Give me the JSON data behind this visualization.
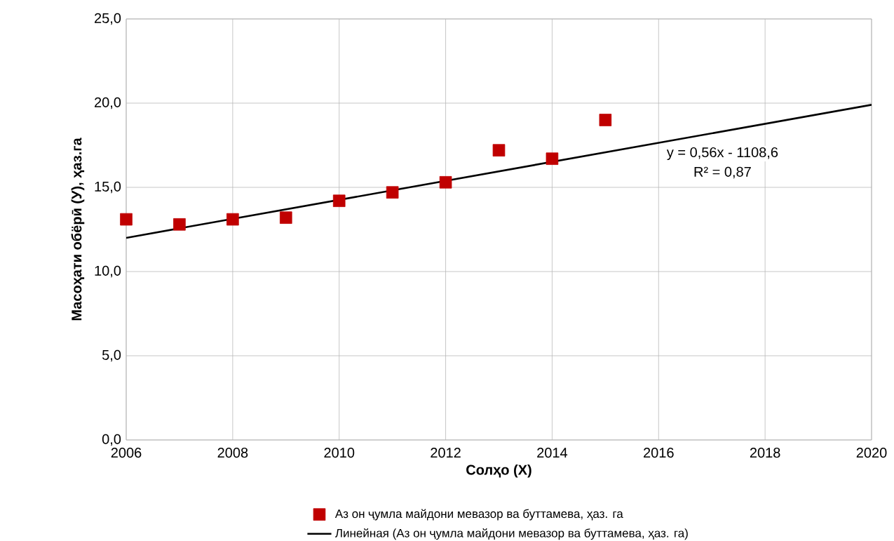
{
  "chart_data": {
    "type": "scatter",
    "xlabel": "Солҳо (X)",
    "ylabel": "Масоҳати обёрӣ (У), ҳаз.га",
    "x": [
      2006,
      2007,
      2008,
      2009,
      2010,
      2011,
      2012,
      2013,
      2014,
      2015
    ],
    "series": [
      {
        "name": "Аз он ҷумла майдони мевазор ва буттамева, ҳаз. га",
        "color": "#c00000",
        "marker": "square",
        "values": [
          13.1,
          12.8,
          13.1,
          13.2,
          14.2,
          14.7,
          15.3,
          17.2,
          16.7,
          19.0
        ]
      },
      {
        "name": "Линейная (Аз он ҷумла майдони мевазор ва буттамева, ҳаз. га)",
        "type": "line",
        "color": "#000000",
        "marker": "none",
        "x": [
          2006,
          2020
        ],
        "values": [
          12.0,
          19.9
        ]
      }
    ],
    "xlim": [
      2006,
      2020
    ],
    "xticks": [
      2006,
      2008,
      2010,
      2012,
      2014,
      2016,
      2018,
      2020
    ],
    "ylim": [
      0,
      25
    ],
    "yticks": [
      {
        "value": 0,
        "label": "0,0"
      },
      {
        "value": 5,
        "label": "5,0"
      },
      {
        "value": 10,
        "label": "10,0"
      },
      {
        "value": 15,
        "label": "15,0"
      },
      {
        "value": 20,
        "label": "20,0"
      },
      {
        "value": 25,
        "label": "25,0"
      }
    ],
    "annotations": [
      "y = 0,56x - 1108,6",
      "R² = 0,87"
    ],
    "grid": true,
    "legend": "bottom"
  }
}
